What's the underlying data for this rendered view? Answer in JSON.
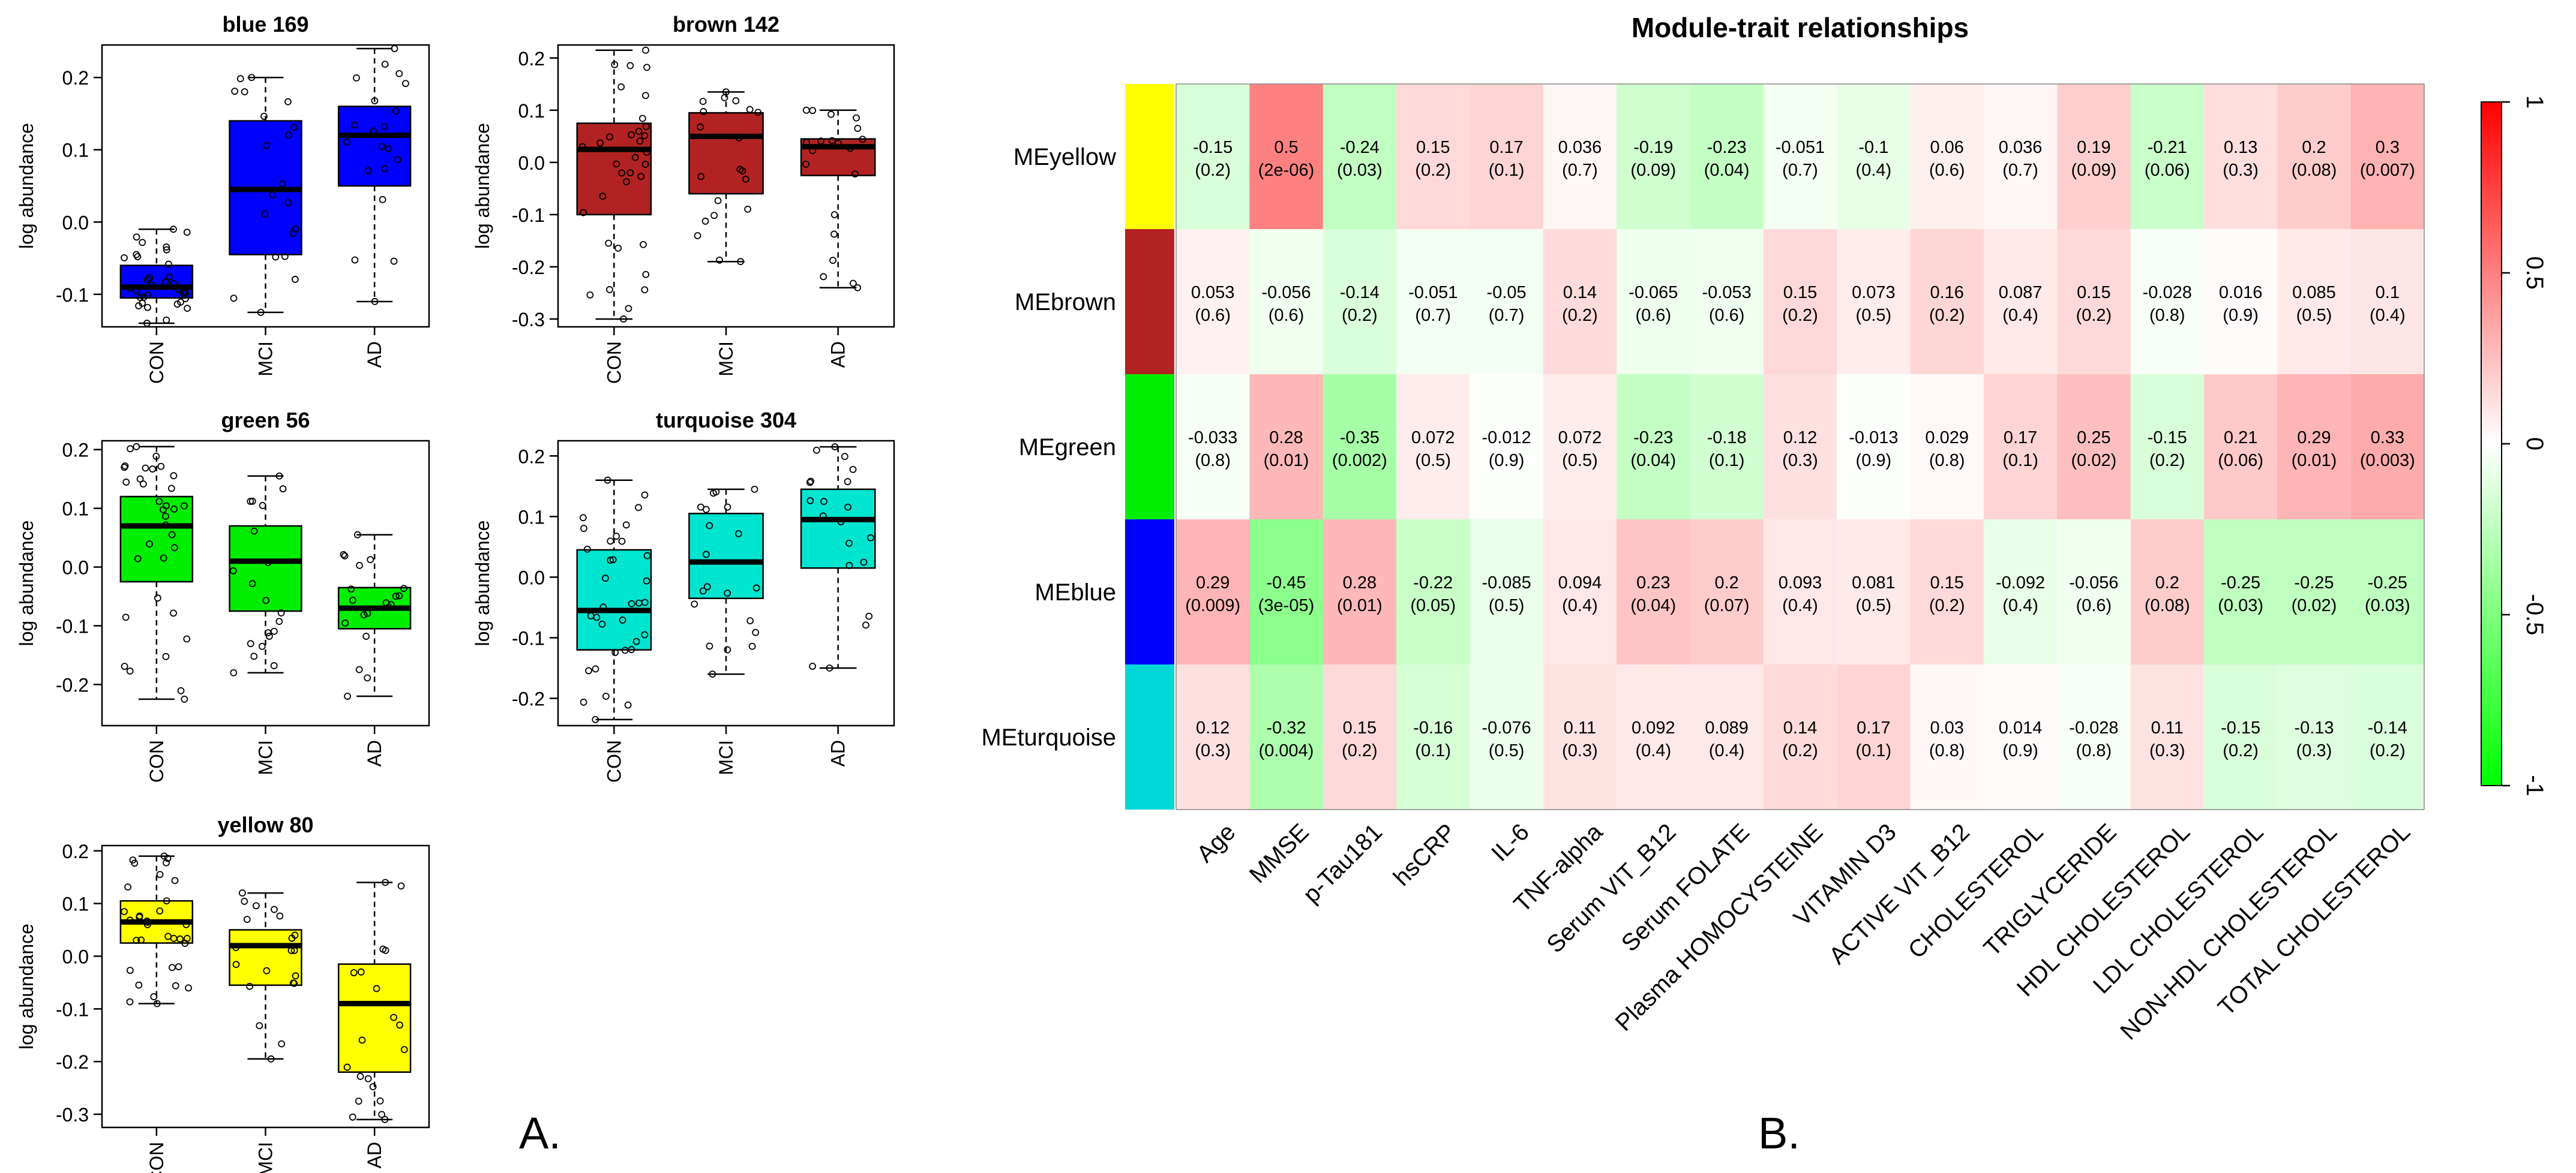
{
  "panel_labels": {
    "a": "A.",
    "b": "B."
  },
  "chart_data": [
    {
      "type": "boxplot",
      "title": "blue 169",
      "ylabel": "log abundance",
      "categories": [
        "CON",
        "MCI",
        "AD"
      ],
      "yticks": [
        "-0.1",
        "0.0",
        "0.1",
        "0.2"
      ],
      "ytick_values": [
        -0.1,
        0.0,
        0.1,
        0.2
      ],
      "ylim": [
        -0.145,
        0.245
      ],
      "color": "#0000FF",
      "stats": [
        {
          "min": -0.14,
          "q1": -0.105,
          "median": -0.09,
          "q3": -0.06,
          "max": -0.01
        },
        {
          "min": -0.125,
          "q1": -0.045,
          "median": 0.045,
          "q3": 0.14,
          "max": 0.2
        },
        {
          "min": -0.11,
          "q1": 0.05,
          "median": 0.12,
          "q3": 0.16,
          "max": 0.24
        }
      ]
    },
    {
      "type": "boxplot",
      "title": "brown 142",
      "ylabel": "log abundance",
      "categories": [
        "CON",
        "MCI",
        "AD"
      ],
      "yticks": [
        "-0.3",
        "-0.2",
        "-0.1",
        "0.0",
        "0.1",
        "0.2"
      ],
      "ytick_values": [
        -0.3,
        -0.2,
        -0.1,
        0.0,
        0.1,
        0.2
      ],
      "ylim": [
        -0.315,
        0.225
      ],
      "color": "#B22222",
      "stats": [
        {
          "min": -0.3,
          "q1": -0.1,
          "median": 0.025,
          "q3": 0.075,
          "max": 0.215
        },
        {
          "min": -0.19,
          "q1": -0.06,
          "median": 0.05,
          "q3": 0.095,
          "max": 0.135
        },
        {
          "min": -0.24,
          "q1": -0.025,
          "median": 0.03,
          "q3": 0.045,
          "max": 0.1
        }
      ]
    },
    {
      "type": "boxplot",
      "title": "green 56",
      "ylabel": "log abundance",
      "categories": [
        "CON",
        "MCI",
        "AD"
      ],
      "yticks": [
        "-0.2",
        "-0.1",
        "0.0",
        "0.1",
        "0.2"
      ],
      "ytick_values": [
        -0.2,
        -0.1,
        0.0,
        0.1,
        0.2
      ],
      "ylim": [
        -0.27,
        0.215
      ],
      "color": "#00EE00",
      "stats": [
        {
          "min": -0.225,
          "q1": -0.025,
          "median": 0.07,
          "q3": 0.12,
          "max": 0.205
        },
        {
          "min": -0.18,
          "q1": -0.075,
          "median": 0.01,
          "q3": 0.07,
          "max": 0.155
        },
        {
          "min": -0.22,
          "q1": -0.105,
          "median": -0.07,
          "q3": -0.035,
          "max": 0.055
        }
      ]
    },
    {
      "type": "boxplot",
      "title": "turquoise 304",
      "ylabel": "log abundance",
      "categories": [
        "CON",
        "MCI",
        "AD"
      ],
      "yticks": [
        "-0.2",
        "-0.1",
        "0.0",
        "0.1",
        "0.2"
      ],
      "ytick_values": [
        -0.2,
        -0.1,
        0.0,
        0.1,
        0.2
      ],
      "ylim": [
        -0.245,
        0.225
      ],
      "color": "#00E5D0",
      "stats": [
        {
          "min": -0.235,
          "q1": -0.12,
          "median": -0.055,
          "q3": 0.045,
          "max": 0.16
        },
        {
          "min": -0.16,
          "q1": -0.035,
          "median": 0.025,
          "q3": 0.105,
          "max": 0.145
        },
        {
          "min": -0.15,
          "q1": 0.015,
          "median": 0.095,
          "q3": 0.145,
          "max": 0.215
        }
      ]
    },
    {
      "type": "boxplot",
      "title": "yellow 80",
      "ylabel": "log abundance",
      "categories": [
        "CON",
        "MCI",
        "AD"
      ],
      "yticks": [
        "-0.3",
        "-0.2",
        "-0.1",
        "0.0",
        "0.1",
        "0.2"
      ],
      "ytick_values": [
        -0.3,
        -0.2,
        -0.1,
        0.0,
        0.1,
        0.2
      ],
      "ylim": [
        -0.325,
        0.21
      ],
      "color": "#FFFF00",
      "stats": [
        {
          "min": -0.09,
          "q1": 0.025,
          "median": 0.065,
          "q3": 0.105,
          "max": 0.19
        },
        {
          "min": -0.195,
          "q1": -0.055,
          "median": 0.02,
          "q3": 0.05,
          "max": 0.12
        },
        {
          "min": -0.31,
          "q1": -0.22,
          "median": -0.09,
          "q3": -0.015,
          "max": 0.14
        }
      ]
    },
    {
      "type": "heatmap",
      "title": "Module-trait relationships",
      "rows": [
        "MEyellow",
        "MEbrown",
        "MEgreen",
        "MEblue",
        "MEturquoise"
      ],
      "row_colors": [
        "#FFFF00",
        "#B22222",
        "#00EE00",
        "#0000FF",
        "#00D8D8"
      ],
      "columns": [
        "Age",
        "MMSE",
        "p-Tau181",
        "hsCRP",
        "IL-6",
        "TNF-alpha",
        "Serum VIT_B12",
        "Serum FOLATE",
        "Plasma HOMOCYSTEINE",
        "VITAMIN D3",
        "ACTIVE VIT_B12",
        "CHOLESTEROL",
        "TRIGLYCERIDE",
        "HDL CHOLESTEROL",
        "LDL CHOLESTEROL",
        "NON-HDL CHOLESTEROL",
        "TOTAL CHOLESTEROL"
      ],
      "values": [
        [
          "-0.15",
          "0.5",
          "-0.24",
          "0.15",
          "0.17",
          "0.036",
          "-0.19",
          "-0.23",
          "-0.051",
          "-0.1",
          "0.06",
          "0.036",
          "0.19",
          "-0.21",
          "0.13",
          "0.2",
          "0.3"
        ],
        [
          "0.053",
          "-0.056",
          "-0.14",
          "-0.051",
          "-0.05",
          "0.14",
          "-0.065",
          "-0.053",
          "0.15",
          "0.073",
          "0.16",
          "0.087",
          "0.15",
          "-0.028",
          "0.016",
          "0.085",
          "0.1"
        ],
        [
          "-0.033",
          "0.28",
          "-0.35",
          "0.072",
          "-0.012",
          "0.072",
          "-0.23",
          "-0.18",
          "0.12",
          "-0.013",
          "0.029",
          "0.17",
          "0.25",
          "-0.15",
          "0.21",
          "0.29",
          "0.33"
        ],
        [
          "0.29",
          "-0.45",
          "0.28",
          "-0.22",
          "-0.085",
          "0.094",
          "0.23",
          "0.2",
          "0.093",
          "0.081",
          "0.15",
          "-0.092",
          "-0.056",
          "0.2",
          "-0.25",
          "-0.25",
          "-0.25"
        ],
        [
          "0.12",
          "-0.32",
          "0.15",
          "-0.16",
          "-0.076",
          "0.11",
          "0.092",
          "0.089",
          "0.14",
          "0.17",
          "0.03",
          "0.014",
          "-0.028",
          "0.11",
          "-0.15",
          "-0.13",
          "-0.14"
        ]
      ],
      "pvalues": [
        [
          "(0.2)",
          "(2e-06)",
          "(0.03)",
          "(0.2)",
          "(0.1)",
          "(0.7)",
          "(0.09)",
          "(0.04)",
          "(0.7)",
          "(0.4)",
          "(0.6)",
          "(0.7)",
          "(0.09)",
          "(0.06)",
          "(0.3)",
          "(0.08)",
          "(0.007)"
        ],
        [
          "(0.6)",
          "(0.6)",
          "(0.2)",
          "(0.7)",
          "(0.7)",
          "(0.2)",
          "(0.6)",
          "(0.6)",
          "(0.2)",
          "(0.5)",
          "(0.2)",
          "(0.4)",
          "(0.2)",
          "(0.8)",
          "(0.9)",
          "(0.5)",
          "(0.4)"
        ],
        [
          "(0.8)",
          "(0.01)",
          "(0.002)",
          "(0.5)",
          "(0.9)",
          "(0.5)",
          "(0.04)",
          "(0.1)",
          "(0.3)",
          "(0.9)",
          "(0.8)",
          "(0.1)",
          "(0.02)",
          "(0.2)",
          "(0.06)",
          "(0.01)",
          "(0.003)"
        ],
        [
          "(0.009)",
          "(3e-05)",
          "(0.01)",
          "(0.05)",
          "(0.5)",
          "(0.4)",
          "(0.04)",
          "(0.07)",
          "(0.4)",
          "(0.5)",
          "(0.2)",
          "(0.4)",
          "(0.6)",
          "(0.08)",
          "(0.03)",
          "(0.02)",
          "(0.03)"
        ],
        [
          "(0.3)",
          "(0.004)",
          "(0.2)",
          "(0.1)",
          "(0.5)",
          "(0.3)",
          "(0.4)",
          "(0.4)",
          "(0.2)",
          "(0.1)",
          "(0.8)",
          "(0.9)",
          "(0.8)",
          "(0.3)",
          "(0.2)",
          "(0.3)",
          "(0.2)"
        ]
      ],
      "colorbar": {
        "ticks": [
          "1",
          "0.5",
          "0",
          "-0.5",
          "-1"
        ],
        "tick_values": [
          1,
          0.5,
          0,
          -0.5,
          -1
        ],
        "range": [
          -1,
          1
        ],
        "low_color": "#00FF00",
        "mid_color": "#FFFFFF",
        "high_color": "#FF0000"
      }
    }
  ]
}
